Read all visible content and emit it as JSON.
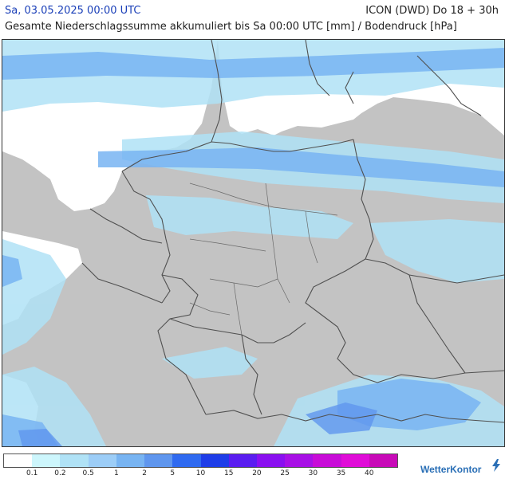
{
  "header": {
    "date": "Sa, 03.05.2025 00:00 UTC",
    "model": "ICON (DWD) Do 18 + 30h",
    "subtitle": "Gesamte Niederschlagssumme akkumuliert bis Sa 00:00 UTC [mm] / Bodendruck [hPa]"
  },
  "legend": {
    "labels": [
      "0.1",
      "0.2",
      "0.5",
      "1",
      "2",
      "5",
      "10",
      "15",
      "20",
      "25",
      "30",
      "35",
      "40"
    ],
    "colors": [
      "#ffffff",
      "#cdf6fc",
      "#b0e2f6",
      "#9ccdf7",
      "#78b4f2",
      "#5f96ee",
      "#2f6af0",
      "#1e3de8",
      "#5a1df0",
      "#8a10f0",
      "#a810e6",
      "#c80cd8",
      "#e00cd8",
      "#c80ab8"
    ]
  },
  "brand": {
    "name": "WetterKontor"
  },
  "colors": {
    "land": "#c3c3c3",
    "sea": "#ffffff",
    "border": "#505050",
    "light_rain": "#b0e2f6",
    "moderate_rain": "#78b4f2",
    "heavier_rain": "#5f96ee"
  }
}
